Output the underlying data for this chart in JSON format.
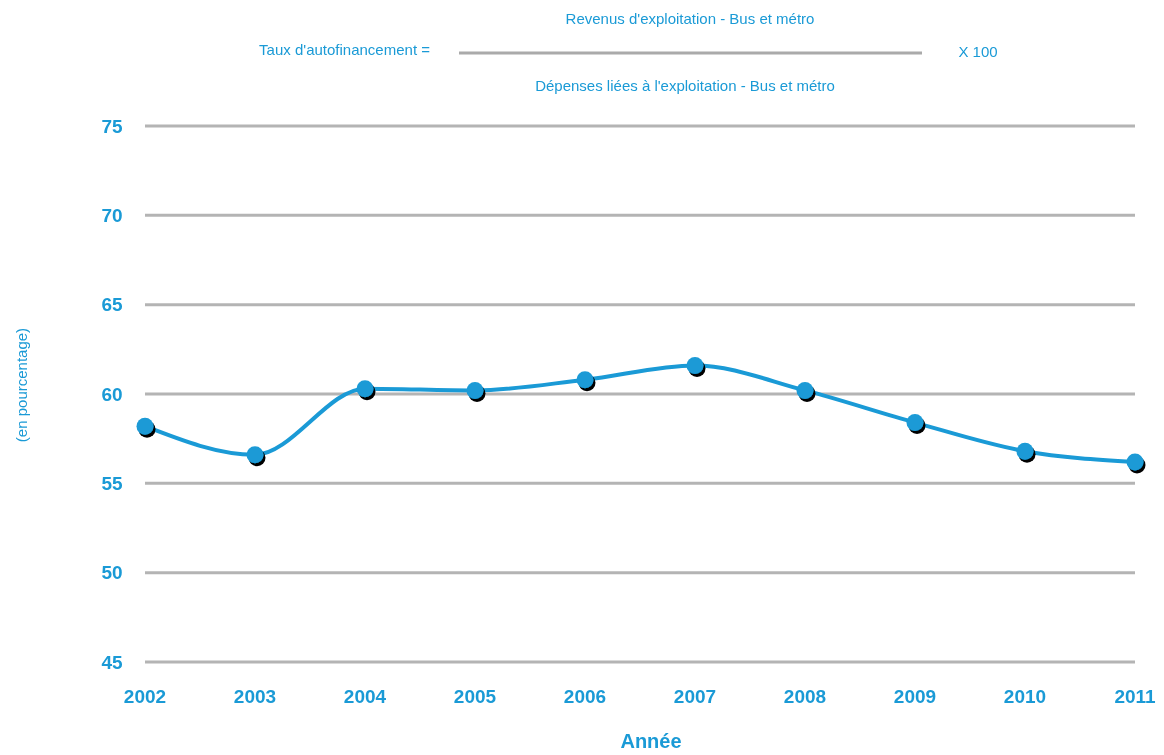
{
  "chart_data": {
    "type": "line",
    "xlabel": "Année",
    "ylabel": "(en pourcentage)",
    "annotations": [
      "Taux d'autofinancement =",
      "Revenus d'exploitation - Bus et métro",
      "Dépenses liées à l'exploitation - Bus et métro",
      "X 100"
    ],
    "categories": [
      "2002",
      "2003",
      "2004",
      "2005",
      "2006",
      "2007",
      "2008",
      "2009",
      "2010",
      "2011"
    ],
    "series": [
      {
        "color": "#1a9ad6",
        "values": [
          58.2,
          56.6,
          60.3,
          60.2,
          60.8,
          61.6,
          60.2,
          58.4,
          56.8,
          56.2
        ]
      }
    ],
    "ylim": [
      45,
      75
    ],
    "yticks": [
      45,
      50,
      55,
      60,
      65,
      70,
      75
    ],
    "grid": "y",
    "marker": "circle",
    "line_style": "solid"
  }
}
